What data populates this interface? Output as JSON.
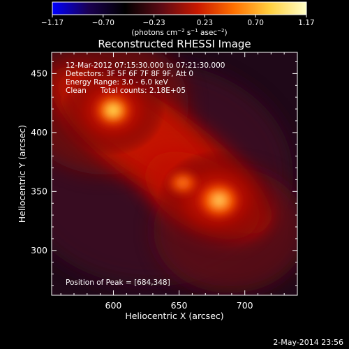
{
  "colorbar": {
    "tick_labels": [
      "−1.17",
      "−0.70",
      "−0.23",
      "0.23",
      "0.70",
      "1.17"
    ],
    "units_main": "(photons cm",
    "units_exp1": "−2",
    "units_mid": " s",
    "units_exp2": "−1",
    "units_mid2": " asec",
    "units_exp3": "−2",
    "units_end": ")",
    "colors": [
      "#0000ff",
      "#1a0050",
      "#000000",
      "#5c0a14",
      "#c81800",
      "#ff7000",
      "#ffd040",
      "#ffffc8"
    ]
  },
  "plot": {
    "title": "Reconstructed RHESSI Image",
    "xlabel": "Heliocentric X (arcsec)",
    "ylabel": "Heliocentric Y (arcsec)",
    "xlim": [
      553,
      740
    ],
    "ylim": [
      262,
      468
    ],
    "xticks": [
      600,
      650,
      700
    ],
    "yticks": [
      300,
      350,
      400,
      450
    ]
  },
  "annotations": {
    "time_range": "12-Mar-2012 07:15:30.000 to 07:21:30.000",
    "detectors": "Detectors: 3F 5F 6F 7F 8F 9F, Att 0",
    "energy": "Energy Range: 3.0 - 6.0 keV",
    "method": "Clean",
    "total_counts": "Total counts: 2.18E+05",
    "peak": "Position of Peak = [684,348]"
  },
  "footer": {
    "date": "2-May-2014 23:56"
  }
}
